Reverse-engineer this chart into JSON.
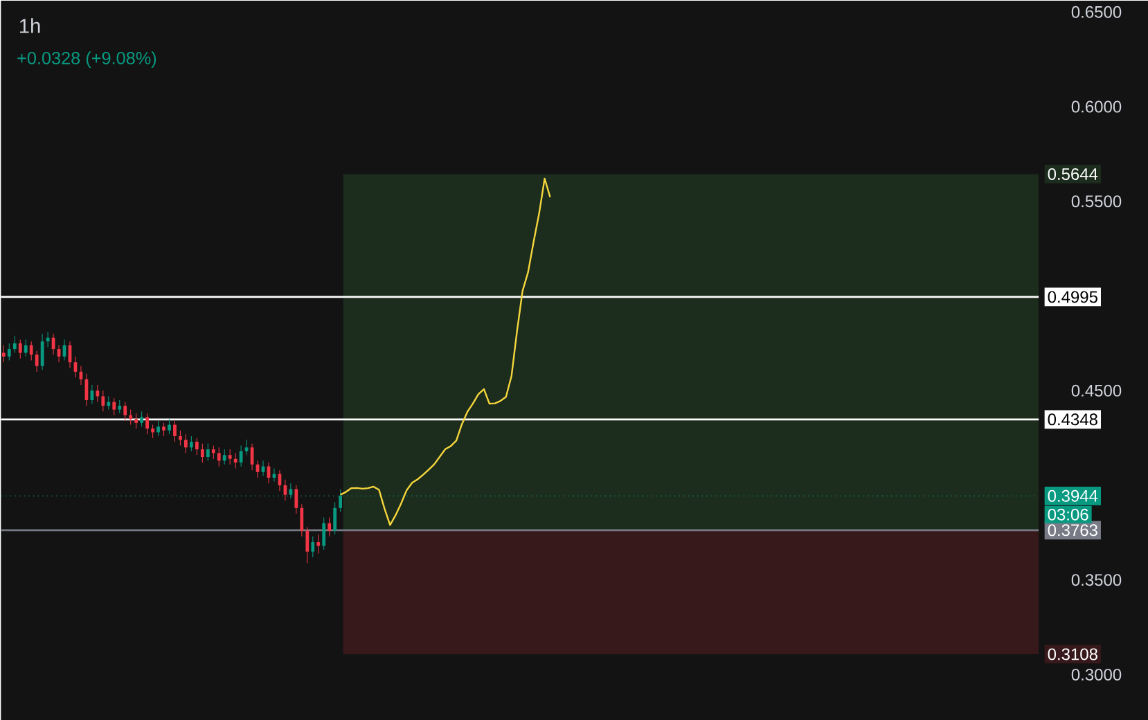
{
  "chart_data": {
    "type": "candlestick",
    "title": "1h",
    "annotations": [
      "+0.0328 (+9.08%)",
      "03:06"
    ],
    "categories": [
      null,
      null,
      null,
      null,
      null,
      null,
      null,
      null,
      null,
      null,
      null,
      null,
      null,
      null,
      null,
      null,
      null,
      null,
      null,
      null,
      null,
      null,
      null,
      null,
      null,
      null,
      null,
      null,
      null,
      null,
      null,
      null,
      null,
      null,
      null,
      null,
      null,
      null,
      null,
      null,
      null,
      null,
      null,
      null,
      null,
      null,
      null,
      null,
      null,
      null,
      null,
      null,
      null,
      null,
      null,
      null,
      null,
      null,
      null,
      null,
      null,
      null,
      null,
      null,
      null,
      null,
      null,
      null,
      null,
      null,
      null,
      null,
      null,
      null,
      null,
      null,
      null,
      null,
      null,
      null,
      null,
      null,
      null,
      null,
      null,
      null,
      null,
      null,
      null,
      null,
      null,
      null,
      null,
      null,
      null,
      null,
      null,
      null,
      null,
      null,
      null,
      null,
      null,
      null,
      null,
      null,
      null,
      null,
      null,
      null,
      null,
      null,
      null,
      null,
      null,
      null,
      null,
      null,
      null,
      null,
      null,
      null,
      null,
      null,
      null,
      null,
      null,
      null,
      null,
      null,
      null,
      null,
      null,
      null,
      null,
      null,
      null,
      null,
      null,
      null,
      null,
      null,
      null,
      null,
      null,
      null,
      null,
      null,
      null,
      null,
      null,
      null,
      null,
      null,
      null,
      null,
      null,
      null,
      null,
      null,
      null,
      null,
      null,
      null,
      null,
      null,
      null,
      null,
      null,
      null,
      null,
      null,
      null,
      null,
      null,
      null,
      null,
      null,
      null,
      null,
      null,
      null,
      null,
      null,
      null,
      null,
      null,
      null
    ],
    "ohlc": [
      [
        0.47,
        0.474,
        0.465,
        0.468
      ],
      [
        0.468,
        0.475,
        0.466,
        0.472
      ],
      [
        0.472,
        0.479,
        0.47,
        0.475
      ],
      [
        0.475,
        0.477,
        0.467,
        0.47
      ],
      [
        0.47,
        0.477,
        0.468,
        0.474
      ],
      [
        0.474,
        0.476,
        0.466,
        0.469
      ],
      [
        0.469,
        0.471,
        0.46,
        0.463
      ],
      [
        0.463,
        0.48,
        0.461,
        0.476
      ],
      [
        0.476,
        0.481,
        0.473,
        0.478
      ],
      [
        0.478,
        0.48,
        0.469,
        0.472
      ],
      [
        0.472,
        0.474,
        0.465,
        0.468
      ],
      [
        0.468,
        0.477,
        0.466,
        0.474
      ],
      [
        0.474,
        0.476,
        0.462,
        0.465
      ],
      [
        0.465,
        0.468,
        0.457,
        0.46
      ],
      [
        0.46,
        0.463,
        0.453,
        0.456
      ],
      [
        0.456,
        0.459,
        0.442,
        0.445
      ],
      [
        0.445,
        0.453,
        0.443,
        0.45
      ],
      [
        0.45,
        0.453,
        0.444,
        0.447
      ],
      [
        0.447,
        0.45,
        0.439,
        0.442
      ],
      [
        0.442,
        0.447,
        0.44,
        0.444
      ],
      [
        0.444,
        0.446,
        0.437,
        0.44
      ],
      [
        0.44,
        0.445,
        0.438,
        0.442
      ],
      [
        0.442,
        0.444,
        0.434,
        0.437
      ],
      [
        0.437,
        0.44,
        0.432,
        0.435
      ],
      [
        0.435,
        0.438,
        0.43,
        0.433
      ],
      [
        0.433,
        0.439,
        0.431,
        0.436
      ],
      [
        0.436,
        0.438,
        0.427,
        0.43
      ],
      [
        0.43,
        0.432,
        0.425,
        0.428
      ],
      [
        0.428,
        0.434,
        0.426,
        0.431
      ],
      [
        0.431,
        0.433,
        0.426,
        0.429
      ],
      [
        0.429,
        0.435,
        0.427,
        0.432
      ],
      [
        0.432,
        0.434,
        0.423,
        0.426
      ],
      [
        0.426,
        0.429,
        0.421,
        0.424
      ],
      [
        0.424,
        0.427,
        0.417,
        0.42
      ],
      [
        0.42,
        0.426,
        0.418,
        0.423
      ],
      [
        0.423,
        0.425,
        0.416,
        0.419
      ],
      [
        0.419,
        0.422,
        0.412,
        0.415
      ],
      [
        0.415,
        0.422,
        0.413,
        0.419
      ],
      [
        0.419,
        0.421,
        0.414,
        0.417
      ],
      [
        0.417,
        0.42,
        0.41,
        0.413
      ],
      [
        0.413,
        0.419,
        0.411,
        0.416
      ],
      [
        0.416,
        0.419,
        0.411,
        0.414
      ],
      [
        0.414,
        0.417,
        0.409,
        0.412
      ],
      [
        0.412,
        0.421,
        0.41,
        0.418
      ],
      [
        0.418,
        0.424,
        0.416,
        0.42
      ],
      [
        0.42,
        0.422,
        0.408,
        0.411
      ],
      [
        0.411,
        0.413,
        0.404,
        0.407
      ],
      [
        0.407,
        0.413,
        0.405,
        0.41
      ],
      [
        0.41,
        0.412,
        0.401,
        0.404
      ],
      [
        0.404,
        0.409,
        0.402,
        0.406
      ],
      [
        0.406,
        0.408,
        0.397,
        0.4
      ],
      [
        0.4,
        0.403,
        0.392,
        0.395
      ],
      [
        0.395,
        0.401,
        0.393,
        0.398
      ],
      [
        0.398,
        0.4,
        0.385,
        0.388
      ],
      [
        0.388,
        0.39,
        0.373,
        0.376
      ],
      [
        0.376,
        0.378,
        0.359,
        0.365
      ],
      [
        0.365,
        0.373,
        0.362,
        0.37
      ],
      [
        0.37,
        0.374,
        0.364,
        0.368
      ],
      [
        0.368,
        0.383,
        0.366,
        0.38
      ],
      [
        0.38,
        0.383,
        0.373,
        0.376
      ],
      [
        0.376,
        0.391,
        0.374,
        0.388
      ],
      [
        0.388,
        0.398,
        0.386,
        0.3944
      ],
      null,
      null,
      null,
      null,
      null,
      null,
      null,
      null,
      null,
      null,
      null,
      null,
      null,
      null,
      null,
      null,
      null,
      null,
      null,
      null,
      null,
      null,
      null,
      null,
      null,
      null,
      null,
      null,
      null,
      null,
      null,
      null,
      null,
      null,
      null,
      null,
      null,
      null,
      null,
      null,
      null,
      null,
      null,
      null,
      null,
      null,
      null,
      null,
      null,
      null,
      null,
      null,
      null,
      null,
      null,
      null,
      null,
      null,
      null,
      null,
      null,
      null,
      null,
      null,
      null,
      null,
      null,
      null,
      null,
      null,
      null,
      null,
      null,
      null,
      null,
      null,
      null,
      null,
      null,
      null,
      null,
      null,
      null,
      null,
      null,
      null,
      null,
      null,
      null,
      null,
      null,
      null,
      null,
      null,
      null,
      null,
      null,
      null,
      null,
      null,
      null,
      null,
      null,
      null,
      null,
      null,
      null,
      null,
      null,
      null,
      null,
      null,
      null,
      null,
      null,
      null,
      null,
      null,
      null,
      null,
      null,
      null,
      null,
      null,
      null,
      null
    ],
    "series": [
      {
        "type": "line",
        "color": "#f5d63d",
        "line_style": "solid",
        "marker": "none",
        "values": [
          null,
          null,
          null,
          null,
          null,
          null,
          null,
          null,
          null,
          null,
          null,
          null,
          null,
          null,
          null,
          null,
          null,
          null,
          null,
          null,
          null,
          null,
          null,
          null,
          null,
          null,
          null,
          null,
          null,
          null,
          null,
          null,
          null,
          null,
          null,
          null,
          null,
          null,
          null,
          null,
          null,
          null,
          null,
          null,
          null,
          null,
          null,
          null,
          null,
          null,
          null,
          null,
          null,
          null,
          null,
          null,
          null,
          null,
          null,
          null,
          null,
          0.395,
          0.3965,
          0.3985,
          0.3986,
          0.3982,
          0.3985,
          0.3993,
          0.3976,
          0.3876,
          0.379,
          0.3842,
          0.3904,
          0.3974,
          0.4014,
          0.4032,
          0.4056,
          0.4083,
          0.4111,
          0.4151,
          0.4191,
          0.4207,
          0.4236,
          0.4322,
          0.4388,
          0.4432,
          0.4481,
          0.4508,
          0.4431,
          0.4433,
          0.4446,
          0.4467,
          0.4578,
          0.4815,
          0.5027,
          0.5126,
          0.5286,
          0.5436,
          0.562,
          0.5522,
          null,
          null,
          null,
          null,
          null,
          null,
          null,
          null,
          null,
          null,
          null,
          null,
          null,
          null,
          null,
          null,
          null,
          null,
          null,
          null,
          null,
          null,
          null,
          null,
          null,
          null,
          null,
          null,
          null,
          null,
          null,
          null,
          null,
          null,
          null,
          null,
          null,
          null,
          null,
          null,
          null,
          null,
          null,
          null,
          null,
          null,
          null,
          null,
          null,
          null,
          null,
          null,
          null,
          null,
          null,
          null,
          null,
          null,
          null,
          null,
          null,
          null,
          null,
          null,
          null,
          null,
          null,
          null,
          null,
          null,
          null,
          null,
          null,
          null,
          null,
          null,
          null,
          null,
          null,
          null,
          null,
          null,
          null,
          null,
          null,
          null,
          null,
          null
        ]
      }
    ],
    "ref_lines": [
      {
        "axis": "y",
        "value": 0.4995,
        "label": "0.4995",
        "color": "#ffffff"
      },
      {
        "axis": "y",
        "value": 0.4348,
        "label": "0.4348",
        "color": "#ffffff"
      },
      {
        "axis": "y",
        "value": 0.3944,
        "label": "0.3944",
        "color": "#089981",
        "line_style": "dotted"
      },
      {
        "axis": "y",
        "value": 0.3763,
        "label": "0.3763",
        "color": "#787b86"
      }
    ],
    "bands": [
      {
        "axis": "y",
        "from": 0.3763,
        "to": 0.5644,
        "label": "0.5644",
        "color": "#1c2c1d"
      },
      {
        "axis": "y",
        "from": 0.3108,
        "to": 0.3763,
        "label": "0.3108",
        "color": "#37181b"
      }
    ],
    "ylim": [
      0.276,
      0.656
    ],
    "yticks": [
      {
        "value": 0.3,
        "label": "0.3000"
      },
      {
        "value": 0.35,
        "label": "0.3500"
      },
      {
        "value": 0.45,
        "label": "0.4500"
      },
      {
        "value": 0.55,
        "label": "0.5500"
      },
      {
        "value": 0.6,
        "label": "0.6000"
      },
      {
        "value": 0.65,
        "label": "0.6500"
      }
    ],
    "tick_labels": "y"
  }
}
